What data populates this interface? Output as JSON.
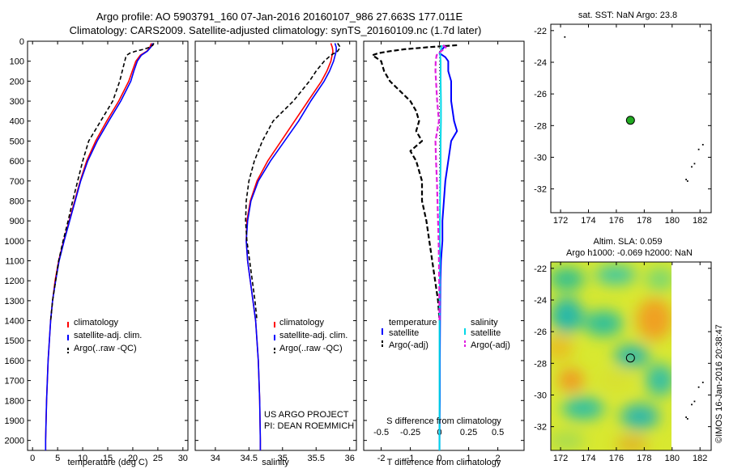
{
  "title_line1": "Argo profile: AO 5903791_160 07-Jan-2016 20160107_986 27.663S 177.011E",
  "title_line2": "Climatology: CARS2009. Satellite-adjusted climatology: synTS_20160109.nc (1.7d later)",
  "colors": {
    "climatology": "#ff0000",
    "satellite": "#0000ff",
    "argo": "#000000",
    "sat_salinity": "#00d8e8",
    "argo_salinity_adj": "#e020e0",
    "marker": "#22aa22"
  },
  "chart_data": [
    {
      "type": "line",
      "panel": "temperature",
      "xlabel": "temperature (deg C)",
      "xlim": [
        -1,
        31
      ],
      "xticks": [
        0,
        5,
        10,
        15,
        20,
        25,
        30
      ],
      "ylim": [
        2050,
        0
      ],
      "yticks": [
        0,
        100,
        200,
        300,
        400,
        500,
        600,
        700,
        800,
        900,
        1000,
        1100,
        1200,
        1300,
        1400,
        1500,
        1600,
        1700,
        1800,
        1900,
        2000
      ],
      "legend": [
        "climatology",
        "satellite-adj. clim.",
        "Argo(..raw -QC)"
      ],
      "series": [
        {
          "key": "climatology",
          "depth": [
            10,
            30,
            50,
            70,
            100,
            150,
            200,
            300,
            400,
            500,
            600,
            700,
            800,
            900,
            1000,
            1100,
            1200,
            1300,
            1400,
            1600,
            1800,
            2000,
            2050
          ],
          "values": [
            23.7,
            23.4,
            22.8,
            21.5,
            20.6,
            19.9,
            19.2,
            17.2,
            14.8,
            12.6,
            10.8,
            9.5,
            8.4,
            7.3,
            6.2,
            5.2,
            4.5,
            4.0,
            3.6,
            3.1,
            2.8,
            2.6,
            2.6
          ]
        },
        {
          "key": "satellite",
          "depth": [
            10,
            30,
            50,
            70,
            100,
            150,
            200,
            300,
            400,
            500,
            600,
            700,
            800,
            900,
            1000,
            1100,
            1200,
            1300,
            1400,
            1600,
            1800,
            2000,
            2050
          ],
          "values": [
            24.0,
            23.6,
            22.9,
            21.7,
            20.9,
            20.2,
            19.6,
            17.6,
            15.2,
            12.9,
            11.0,
            9.6,
            8.5,
            7.4,
            6.3,
            5.3,
            4.6,
            4.0,
            3.6,
            3.1,
            2.8,
            2.6,
            2.6
          ]
        },
        {
          "key": "argo",
          "depth": [
            10,
            20,
            30,
            40,
            50,
            60,
            70,
            80,
            100,
            150,
            200,
            300,
            400,
            500,
            600,
            700,
            800,
            900,
            1000,
            1100,
            1200,
            1300,
            1400
          ],
          "values": [
            24.2,
            24.0,
            23.4,
            22.2,
            20.6,
            19.4,
            18.8,
            18.6,
            18.4,
            17.9,
            17.4,
            16.0,
            13.6,
            11.2,
            10.0,
            9.0,
            8.0,
            7.1,
            6.1,
            5.2,
            4.6,
            4.0,
            3.6
          ]
        }
      ]
    },
    {
      "type": "line",
      "panel": "salinity",
      "xlabel": "salinity",
      "xlim": [
        33.7,
        36.1
      ],
      "xticks": [
        34,
        34.5,
        35,
        35.5,
        36
      ],
      "ylim": [
        2050,
        0
      ],
      "legend": [
        "climatology",
        "satellite-adj. clim.",
        "Argo(..raw -QC)"
      ],
      "series": [
        {
          "key": "climatology",
          "depth": [
            10,
            30,
            50,
            100,
            150,
            200,
            300,
            400,
            500,
            600,
            700,
            800,
            900,
            1000,
            1100,
            1200,
            1300,
            1400,
            1600,
            1800,
            2000,
            2050
          ],
          "values": [
            35.72,
            35.74,
            35.75,
            35.72,
            35.66,
            35.58,
            35.38,
            35.18,
            34.98,
            34.78,
            34.62,
            34.52,
            34.47,
            34.46,
            34.48,
            34.52,
            34.56,
            34.6,
            34.64,
            34.66,
            34.67,
            34.67
          ]
        },
        {
          "key": "satellite",
          "depth": [
            10,
            30,
            50,
            100,
            150,
            200,
            300,
            400,
            500,
            600,
            700,
            800,
            900,
            1000,
            1100,
            1200,
            1300,
            1400,
            1600,
            1800,
            2000,
            2050
          ],
          "values": [
            35.78,
            35.8,
            35.8,
            35.76,
            35.7,
            35.62,
            35.42,
            35.24,
            35.03,
            34.82,
            34.64,
            34.53,
            34.48,
            34.46,
            34.48,
            34.52,
            34.56,
            34.6,
            34.64,
            34.66,
            34.67,
            34.67
          ]
        },
        {
          "key": "argo",
          "depth": [
            10,
            30,
            50,
            70,
            100,
            150,
            200,
            300,
            400,
            500,
            600,
            700,
            800,
            900,
            1000,
            1100,
            1200,
            1300,
            1400
          ],
          "values": [
            35.82,
            35.86,
            35.82,
            35.72,
            35.62,
            35.5,
            35.4,
            35.16,
            34.86,
            34.7,
            34.58,
            34.5,
            34.46,
            34.45,
            34.47,
            34.51,
            34.55,
            34.59,
            34.62
          ]
        }
      ]
    },
    {
      "type": "line",
      "panel": "differences",
      "xlabel": "T difference from climatology",
      "xlabel_top": "S difference from climatology",
      "xlim": [
        -2.6,
        2.9
      ],
      "xticks": [
        -2,
        -1,
        0,
        1,
        2
      ],
      "xticks_top": [
        "-0.5",
        "-0.25",
        "0",
        "0.25",
        "0.5"
      ],
      "ylim": [
        2050,
        0
      ],
      "legend_temperature": {
        "title": "temperature",
        "items": [
          "satellite",
          "Argo(-adj)"
        ]
      },
      "legend_salinity": {
        "title": "salinity",
        "items": [
          "satellite",
          "Argo(-adj)"
        ]
      },
      "series": [
        {
          "key": "t_satellite",
          "depth": [
            20,
            40,
            60,
            80,
            100,
            150,
            200,
            300,
            400,
            450,
            500,
            600,
            700,
            800,
            900,
            1000,
            1100,
            1200,
            1400,
            1600,
            1800,
            2000,
            2050
          ],
          "values": [
            0.2,
            0.1,
            0.0,
            0.2,
            0.3,
            0.3,
            0.4,
            0.4,
            0.5,
            0.6,
            0.4,
            0.3,
            0.2,
            0.15,
            0.1,
            0.1,
            0.05,
            0.03,
            0.02,
            0.01,
            0.01,
            0.0,
            0.0
          ]
        },
        {
          "key": "t_argo",
          "depth": [
            20,
            30,
            40,
            50,
            60,
            70,
            80,
            100,
            150,
            200,
            300,
            350,
            400,
            450,
            500,
            550,
            600,
            700,
            800,
            900,
            1000,
            1100,
            1200,
            1300,
            1400
          ],
          "values": [
            0.6,
            -0.4,
            -1.2,
            -1.7,
            -2.1,
            -2.3,
            -2.2,
            -2.0,
            -1.9,
            -1.7,
            -1.0,
            -0.8,
            -0.7,
            -0.8,
            -0.6,
            -1.0,
            -0.8,
            -0.6,
            -0.6,
            -0.45,
            -0.35,
            -0.25,
            -0.15,
            -0.05,
            0.0
          ]
        },
        {
          "key": "s_satellite",
          "depth": [
            20,
            40,
            60,
            100,
            200,
            300,
            400,
            500,
            600,
            800,
            1000,
            1200,
            1400,
            1600,
            1800,
            2000,
            2050
          ],
          "values": [
            0.07,
            0.05,
            0.02,
            0.04,
            0.04,
            0.05,
            0.05,
            0.04,
            0.04,
            0.02,
            0.01,
            0.01,
            0.0,
            0.0,
            0.0,
            0.0,
            0.0
          ]
        },
        {
          "key": "s_argo",
          "depth": [
            20,
            30,
            40,
            50,
            70,
            100,
            150,
            200,
            300,
            400,
            500,
            600,
            700,
            800,
            900,
            1000,
            1100,
            1200,
            1400
          ],
          "values": [
            0.12,
            0.22,
            0.15,
            0.05,
            -0.1,
            -0.13,
            -0.14,
            -0.12,
            -0.08,
            -0.02,
            -0.14,
            -0.12,
            -0.09,
            -0.07,
            -0.05,
            -0.03,
            -0.02,
            -0.01,
            0.0
          ]
        }
      ]
    },
    {
      "type": "scatter",
      "panel": "sst_map",
      "title": "sat. SST: NaN Argo: 23.8",
      "xlim": [
        171.3,
        182.8
      ],
      "xticks": [
        172,
        174,
        176,
        178,
        180,
        182
      ],
      "ylim": [
        -33.5,
        -21.6
      ],
      "yticks": [
        -22,
        -24,
        -26,
        -28,
        -30,
        -32
      ],
      "points": [
        {
          "x": 177.011,
          "y": -27.663
        }
      ],
      "coast": [
        [
          172.3,
          -22.4
        ],
        [
          182.2,
          -29.2
        ],
        [
          181.9,
          -29.5
        ],
        [
          181.6,
          -30.4
        ],
        [
          181.4,
          -30.6
        ],
        [
          181.1,
          -31.5
        ],
        [
          181.0,
          -31.4
        ]
      ]
    },
    {
      "type": "heatmap",
      "panel": "sla_map",
      "title_line1": "Altim. SLA: 0.059",
      "title_line2": "Argo h1000: -0.069 h2000: NaN",
      "xlim": [
        171.3,
        182.8
      ],
      "xticks": [
        172,
        174,
        176,
        178,
        180,
        182
      ],
      "ylim": [
        -33.5,
        -21.6
      ],
      "yticks": [
        -22,
        -24,
        -26,
        -28,
        -30,
        -32
      ],
      "data_extent_x": [
        171.3,
        180.0
      ],
      "points": [
        {
          "x": 177.011,
          "y": -27.663
        }
      ],
      "coast": [
        [
          182.2,
          -29.2
        ],
        [
          181.9,
          -29.5
        ],
        [
          181.6,
          -30.4
        ],
        [
          181.4,
          -30.6
        ],
        [
          181.1,
          -31.5
        ],
        [
          181.0,
          -31.4
        ]
      ]
    }
  ],
  "project_line1": "US ARGO PROJECT",
  "project_line2": "PI: DEAN ROEMMICH",
  "timestamp": "©IMOS 16-Jan-2016 20:38:47"
}
